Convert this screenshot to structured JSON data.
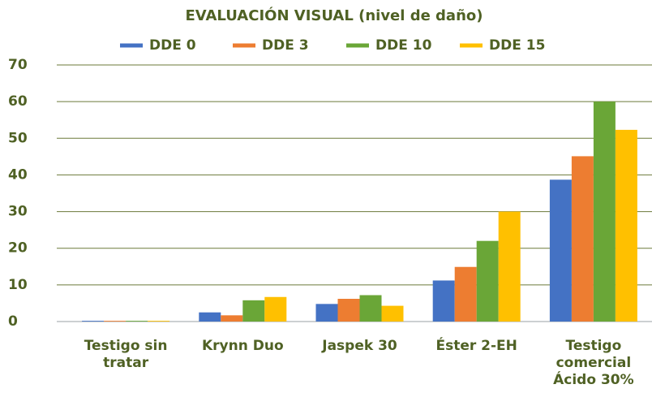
{
  "chart_data": {
    "type": "bar",
    "title": "EVALUACIÓN VISUAL (nivel de daño)",
    "categories": [
      "Testigo sin tratar",
      "Krynn Duo",
      "Jaspek 30",
      "Éster 2-EH",
      "Testigo comercial Ácido 30%"
    ],
    "series": [
      {
        "name": "DDE 0",
        "color": "#4472c4",
        "values": [
          0.2,
          2.5,
          4.8,
          11.2,
          38.7
        ]
      },
      {
        "name": "DDE 3",
        "color": "#ed7d31",
        "values": [
          0.2,
          1.7,
          6.2,
          14.9,
          45.1
        ]
      },
      {
        "name": "DDE 10",
        "color": "#6aa637",
        "values": [
          0.2,
          5.8,
          7.2,
          22,
          60
        ]
      },
      {
        "name": "DDE 15",
        "color": "#ffc000",
        "values": [
          0.2,
          6.7,
          4.3,
          30,
          52.3
        ]
      }
    ],
    "ylim": [
      0,
      70
    ],
    "yticks": [
      0,
      10,
      20,
      30,
      40,
      50,
      60,
      70
    ],
    "grid": true,
    "legend": "top"
  }
}
